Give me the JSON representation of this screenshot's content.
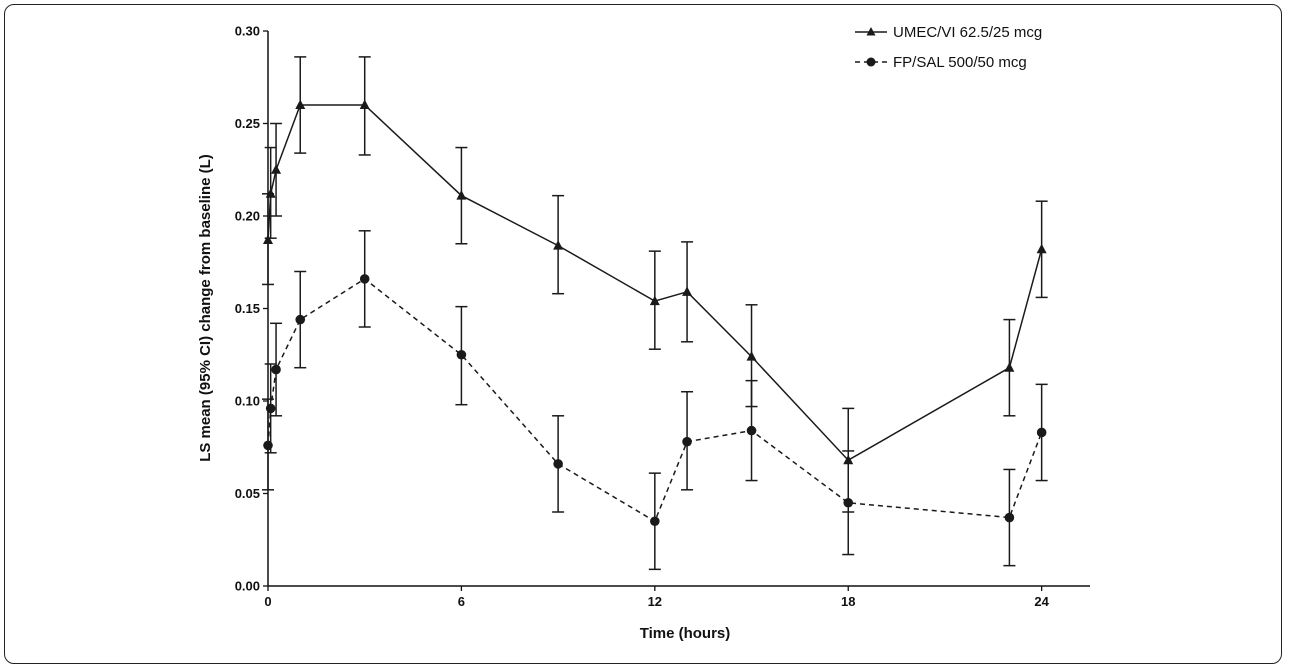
{
  "chart_data": {
    "type": "line",
    "title": "",
    "xlabel": "Time (hours)",
    "ylabel": "LS mean (95% CI) change from baseline (L)",
    "xlim": [
      0,
      25.5
    ],
    "ylim": [
      0,
      0.3
    ],
    "xticks": [
      0,
      6,
      12,
      18,
      24
    ],
    "xtick_labels": [
      "0",
      "6",
      "12",
      "18",
      "24"
    ],
    "yticks": [
      0,
      0.05,
      0.1,
      0.15,
      0.2,
      0.25,
      0.3
    ],
    "ytick_labels": [
      "0.00",
      "0.05",
      "0.10",
      "0.15",
      "0.20",
      "0.25",
      "0.30"
    ],
    "legend_position": "top-right",
    "grid": false,
    "series": [
      {
        "name": "UMEC/VI 62.5/25 mcg",
        "marker": "triangle",
        "line_style": "solid",
        "color": "#1a1a1a",
        "x": [
          0,
          0.083,
          0.25,
          1,
          3,
          6,
          9,
          12,
          13,
          15,
          18,
          23,
          24
        ],
        "y": [
          0.187,
          0.212,
          0.225,
          0.26,
          0.26,
          0.211,
          0.184,
          0.154,
          0.159,
          0.124,
          0.068,
          0.118,
          0.182
        ],
        "ci_low": [
          0.163,
          0.188,
          0.2,
          0.234,
          0.233,
          0.185,
          0.158,
          0.128,
          0.132,
          0.097,
          0.04,
          0.092,
          0.156
        ],
        "ci_high": [
          0.212,
          0.237,
          0.25,
          0.286,
          0.286,
          0.237,
          0.211,
          0.181,
          0.186,
          0.152,
          0.096,
          0.144,
          0.208
        ]
      },
      {
        "name": "FP/SAL 500/50 mcg",
        "marker": "circle",
        "line_style": "dashed",
        "color": "#1a1a1a",
        "x": [
          0,
          0.083,
          0.25,
          1,
          3,
          6,
          9,
          12,
          13,
          15,
          18,
          23,
          24
        ],
        "y": [
          0.076,
          0.096,
          0.117,
          0.144,
          0.166,
          0.125,
          0.066,
          0.035,
          0.078,
          0.084,
          0.045,
          0.037,
          0.083
        ],
        "ci_low": [
          0.052,
          0.072,
          0.092,
          0.118,
          0.14,
          0.098,
          0.04,
          0.009,
          0.052,
          0.057,
          0.017,
          0.011,
          0.057
        ],
        "ci_high": [
          0.101,
          0.12,
          0.142,
          0.17,
          0.192,
          0.151,
          0.092,
          0.061,
          0.105,
          0.111,
          0.073,
          0.063,
          0.109
        ]
      }
    ]
  }
}
